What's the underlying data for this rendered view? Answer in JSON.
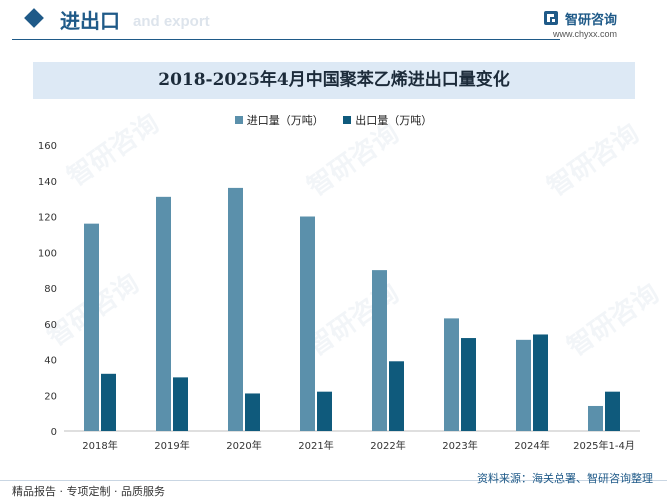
{
  "header": {
    "section_title": "进出口",
    "section_subtitle": "and export",
    "brand_name": "智研咨询",
    "brand_url": "www.chyxx.com"
  },
  "chart_data": {
    "type": "bar",
    "title": "2018-2025年4月中国聚苯乙烯进出口量变化",
    "categories": [
      "2018年",
      "2019年",
      "2020年",
      "2021年",
      "2022年",
      "2023年",
      "2024年",
      "2025年1-4月"
    ],
    "series": [
      {
        "name": "进口量（万吨）",
        "color": "#5b90ab",
        "values": [
          116,
          131,
          136,
          120,
          90,
          63,
          51,
          14
        ]
      },
      {
        "name": "出口量（万吨）",
        "color": "#0f5a7c",
        "values": [
          32,
          30,
          21,
          22,
          39,
          52,
          54,
          22
        ]
      }
    ],
    "ylim": [
      0,
      160
    ],
    "yticks": [
      0,
      20,
      40,
      60,
      80,
      100,
      120,
      140,
      160
    ],
    "xlabel": "",
    "ylabel": ""
  },
  "footer": {
    "left_text": "精品报告 · 专项定制 · 品质服务",
    "right_text": "资料来源：海关总署、智研咨询整理"
  },
  "watermark_text": "智研咨询"
}
